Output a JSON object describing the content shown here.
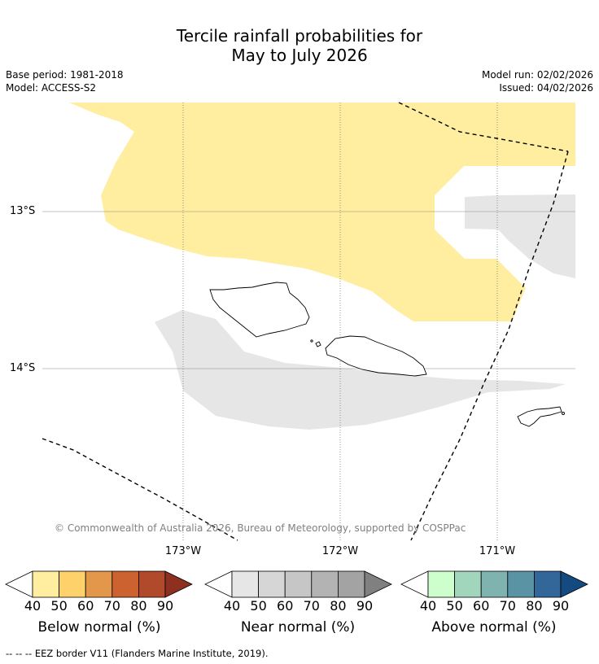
{
  "title": {
    "line1": "Tercile rainfall probabilities for",
    "line2": "May to July 2026"
  },
  "meta": {
    "base_period": "Base period: 1981-2018",
    "model": "Model: ACCESS-S2",
    "model_run": "Model run: 02/02/2026",
    "issued": "Issued: 04/02/2026"
  },
  "map": {
    "lat_labels": [
      "13°S",
      "14°S"
    ],
    "lon_labels": [
      "173°W",
      "172°W",
      "171°W"
    ],
    "copyright": "© Commonwealth of Australia 2026, Bureau of Meteorology, supported by COSPPac",
    "colors": {
      "below_40": "#ffeda0",
      "near_40": "#e6e6e6",
      "coast": "#000000",
      "grid": "#888888"
    }
  },
  "legends": [
    {
      "title": "Below normal (%)",
      "ticks": [
        "40",
        "50",
        "60",
        "70",
        "80",
        "90"
      ],
      "colors": [
        "#ffeda0",
        "#fed16a",
        "#e2974a",
        "#cb6230",
        "#b04a2b",
        "#8e3020"
      ]
    },
    {
      "title": "Near normal (%)",
      "ticks": [
        "40",
        "50",
        "60",
        "70",
        "80",
        "90"
      ],
      "colors": [
        "#e6e6e6",
        "#d6d6d6",
        "#c6c6c6",
        "#b3b3b3",
        "#a3a3a3",
        "#808080"
      ]
    },
    {
      "title": "Above normal (%)",
      "ticks": [
        "40",
        "50",
        "60",
        "70",
        "80",
        "90"
      ],
      "colors": [
        "#ccffcc",
        "#a2d6bc",
        "#7fb3b0",
        "#5a93a3",
        "#336699",
        "#154a80"
      ]
    }
  ],
  "footer": "--  --  -- EEZ border V11 (Flanders Marine Institute, 2019)."
}
